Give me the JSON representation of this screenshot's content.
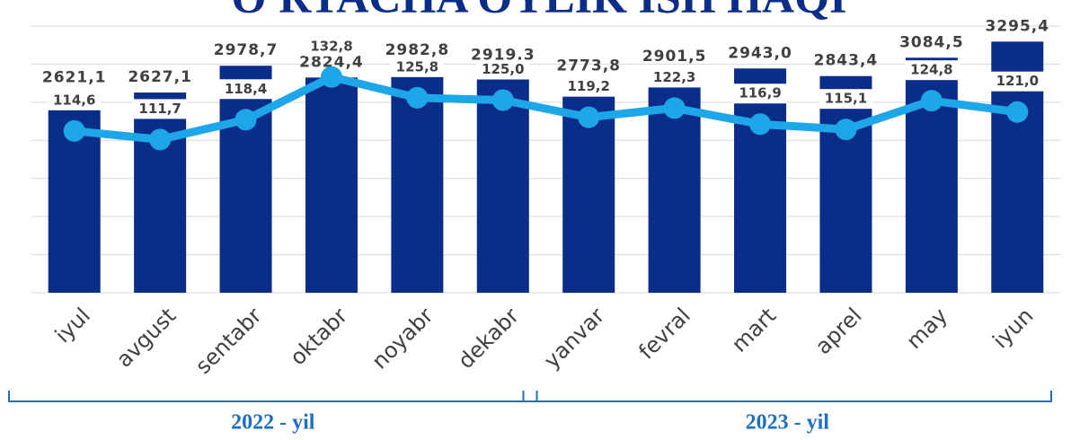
{
  "chart_data": {
    "type": "bar_line",
    "title": "O'RTACHA OYLIK ISH HAQI",
    "categories": [
      "iyul",
      "avgust",
      "sentabr",
      "oktabr",
      "noyabr",
      "dekabr",
      "yanvar",
      "fevral",
      "mart",
      "aprel",
      "may",
      "iyun"
    ],
    "series": [
      {
        "color": "#0a2d8a",
        "type": "bar",
        "values": [
          2621.1,
          2627.1,
          2978.7,
          2824.4,
          2982.8,
          2919.3,
          2773.8,
          2901.5,
          2943.0,
          2843.4,
          3084.5,
          3295.4
        ],
        "value_labels": [
          "2621,1",
          "2627,1",
          "2978,7",
          "2824,4",
          "2982,8",
          "2919,3",
          "2773,8",
          "2901,5",
          "2943,0",
          "2843,4",
          "3084,5",
          "3295,4"
        ]
      },
      {
        "color": "#1ea7e8",
        "type": "line",
        "axis": "y2",
        "values": [
          114.6,
          111.7,
          118.4,
          132.8,
          125.8,
          125.0,
          119.2,
          122.3,
          116.9,
          115.1,
          124.8,
          121.0
        ],
        "value_labels": [
          "114,6",
          "111,7",
          "118,4",
          "132,8",
          "125,8",
          "125,0",
          "119,2",
          "122,3",
          "116,9",
          "115,1",
          "124,8",
          "121,0"
        ]
      }
    ],
    "ylim": [
      0,
      3500
    ],
    "yticks": [
      0,
      500,
      1000,
      1500,
      2000,
      2500,
      3000,
      3500
    ],
    "y2lim": [
      60,
      150
    ],
    "grid": true,
    "groups": [
      {
        "label": "2022 - yil",
        "from": 0,
        "to": 5
      },
      {
        "label": "2023 - yil",
        "from": 6,
        "to": 11
      }
    ]
  }
}
